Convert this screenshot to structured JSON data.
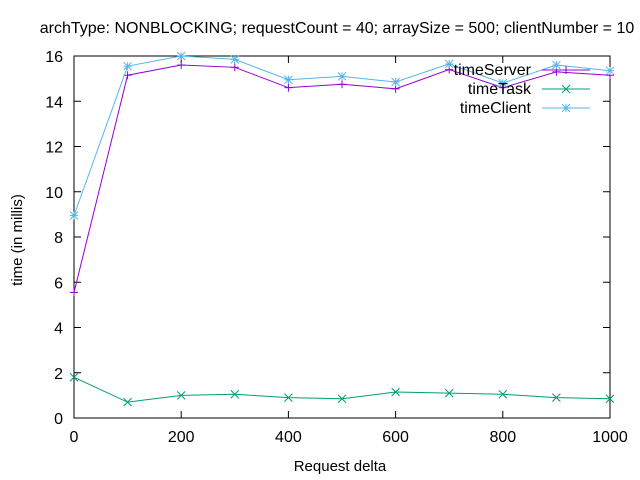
{
  "chart_data": {
    "type": "line",
    "title": "archType: NONBLOCKING; requestCount = 40; arraySize = 500; clientNumber = 10",
    "xlabel": "Request delta",
    "ylabel": "time (in millis)",
    "xlim": [
      0,
      1000
    ],
    "ylim": [
      0,
      16
    ],
    "xticks": [
      0,
      200,
      400,
      600,
      800,
      1000
    ],
    "yticks": [
      0,
      2,
      4,
      6,
      8,
      10,
      12,
      14,
      16
    ],
    "grid": false,
    "legend_position": "top-right",
    "x": [
      0,
      100,
      200,
      300,
      400,
      500,
      600,
      700,
      800,
      900,
      1000
    ],
    "series": [
      {
        "name": "timeServer",
        "color": "#9400d3",
        "marker": "plus",
        "values": [
          5.55,
          15.15,
          15.6,
          15.5,
          14.6,
          14.75,
          14.55,
          15.4,
          14.6,
          15.3,
          15.15
        ]
      },
      {
        "name": "timeTask",
        "color": "#009e73",
        "marker": "cross",
        "values": [
          1.8,
          0.7,
          1.0,
          1.05,
          0.9,
          0.85,
          1.15,
          1.1,
          1.05,
          0.9,
          0.85
        ]
      },
      {
        "name": "timeClient",
        "color": "#56b4e9",
        "marker": "star",
        "values": [
          8.95,
          15.55,
          16.0,
          15.85,
          14.95,
          15.1,
          14.85,
          15.65,
          14.8,
          15.6,
          15.35
        ]
      }
    ]
  }
}
